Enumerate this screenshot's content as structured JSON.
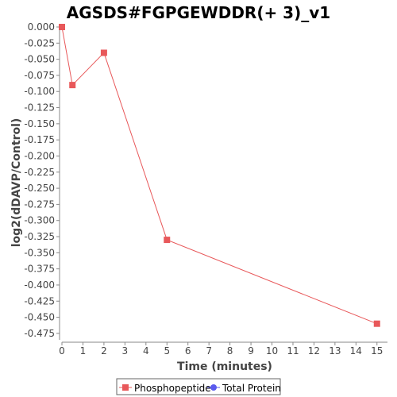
{
  "chart_data": {
    "type": "line",
    "title": "AGSDS#FGPGEWDDR(+ 3)_v1",
    "xlabel": "Time (minutes)",
    "ylabel": "log2(dDAVP/Control)",
    "xlim": [
      0,
      15.5
    ],
    "ylim": [
      -0.485,
      0.0
    ],
    "x_ticks": [
      "0",
      "1",
      "2",
      "3",
      "4",
      "5",
      "6",
      "7",
      "8",
      "9",
      "10",
      "11",
      "12",
      "13",
      "14",
      "15"
    ],
    "y_ticks": [
      "0.000",
      "-0.025",
      "-0.050",
      "-0.075",
      "-0.100",
      "-0.125",
      "-0.150",
      "-0.175",
      "-0.200",
      "-0.225",
      "-0.250",
      "-0.275",
      "-0.300",
      "-0.325",
      "-0.350",
      "-0.375",
      "-0.400",
      "-0.425",
      "-0.450",
      "-0.475"
    ],
    "grid": false,
    "legend_position": "bottom",
    "series": [
      {
        "name": "Phosphopeptide",
        "color": "#e8585a",
        "marker": "square",
        "x": [
          0,
          0.5,
          2,
          5,
          15
        ],
        "y": [
          0.0,
          -0.09,
          -0.04,
          -0.33,
          -0.46
        ]
      },
      {
        "name": "Total Protein",
        "color": "#5a5aee",
        "marker": "circle",
        "x": [],
        "y": []
      }
    ]
  }
}
